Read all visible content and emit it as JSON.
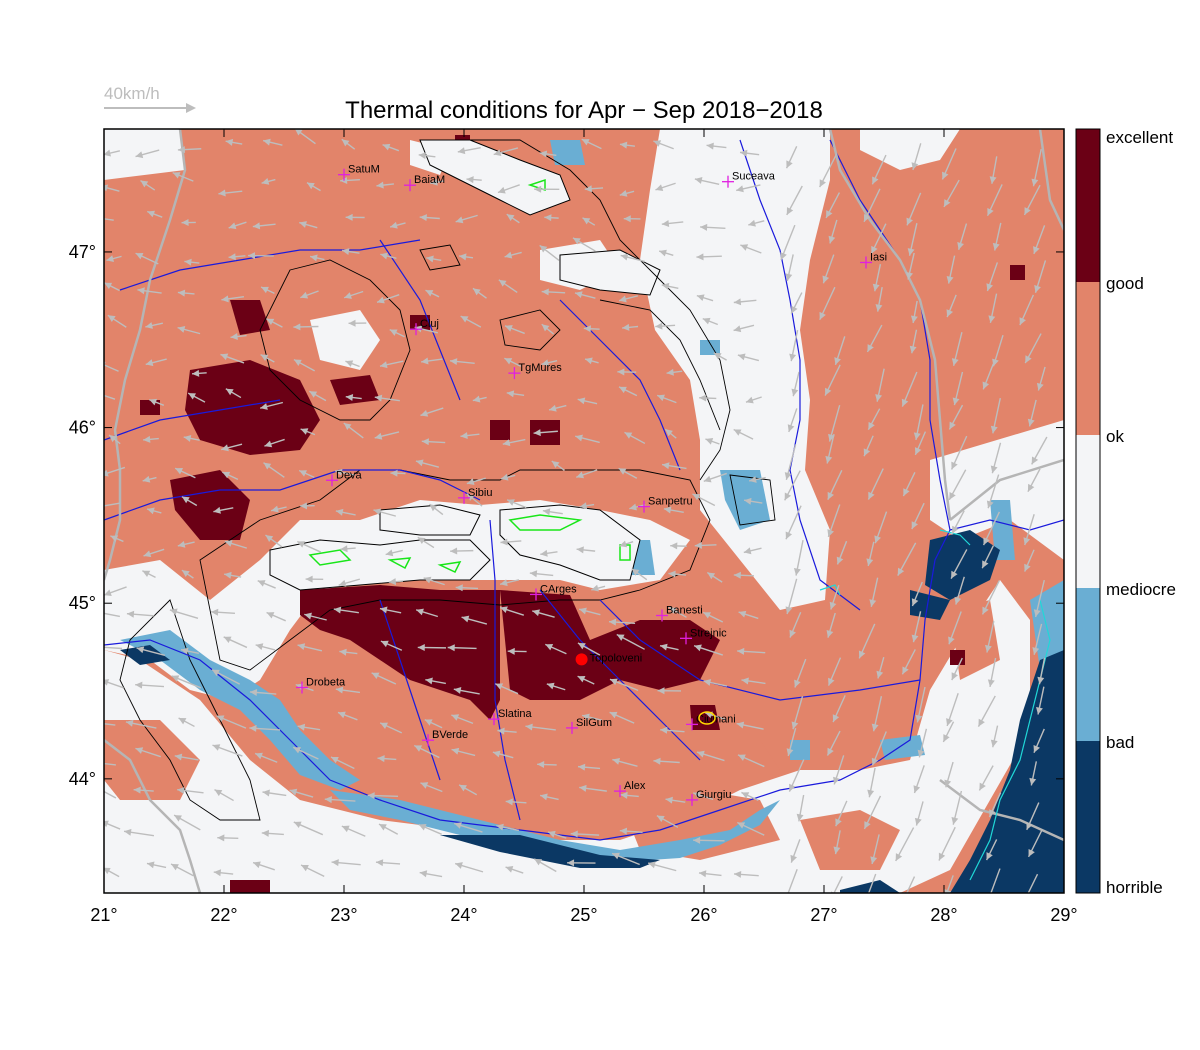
{
  "title": "Thermal conditions for Apr − Sep  2018−2018",
  "wind_scale": {
    "label": "40km/h",
    "color": "#bdbdbd"
  },
  "colors": {
    "horrible": "#0b3864",
    "bad": "#6aaed3",
    "mediocre": "#f4f5f7",
    "ok": "#e2846a",
    "good": "#6b0015",
    "rivers": "#1a1adc",
    "borders": "#b5b5b5",
    "contours": "#000000",
    "city_marker": "#e020e0",
    "site_marker": "#ff0000"
  },
  "colorbar": {
    "levels": [
      {
        "name": "excellent",
        "color": "#6b0015"
      },
      {
        "name": "good",
        "color": "#e2846a"
      },
      {
        "name": "ok",
        "color": "#f4f5f7"
      },
      {
        "name": "mediocre",
        "color": "#6aaed3"
      },
      {
        "name": "bad",
        "color": "#0b3864"
      },
      {
        "name": "horrible",
        "color": "#0b3864"
      }
    ]
  },
  "axes": {
    "lon_range": [
      21,
      29
    ],
    "lat_range": [
      43.35,
      47.7
    ],
    "lon_ticks": [
      "21°",
      "22°",
      "23°",
      "24°",
      "25°",
      "26°",
      "27°",
      "28°",
      "29°"
    ],
    "lat_ticks": [
      "44°",
      "45°",
      "46°",
      "47°"
    ]
  },
  "cities": [
    {
      "name": "SatuM",
      "lon": 23.0,
      "lat": 47.44
    },
    {
      "name": "BaiaM",
      "lon": 23.55,
      "lat": 47.38
    },
    {
      "name": "Suceava",
      "lon": 26.2,
      "lat": 47.4
    },
    {
      "name": "Iasi",
      "lon": 27.35,
      "lat": 46.94
    },
    {
      "name": "Cluj",
      "lon": 23.6,
      "lat": 46.56
    },
    {
      "name": "TgMures",
      "lon": 24.42,
      "lat": 46.31
    },
    {
      "name": "Deva",
      "lon": 22.9,
      "lat": 45.7
    },
    {
      "name": "Sibiu",
      "lon": 24.0,
      "lat": 45.6
    },
    {
      "name": "Sanpetru",
      "lon": 25.5,
      "lat": 45.55
    },
    {
      "name": "CArges",
      "lon": 24.6,
      "lat": 45.05
    },
    {
      "name": "Banesti",
      "lon": 25.65,
      "lat": 44.93
    },
    {
      "name": "Strejnic",
      "lon": 25.85,
      "lat": 44.8
    },
    {
      "name": "Drobeta",
      "lon": 22.65,
      "lat": 44.52
    },
    {
      "name": "Slatina",
      "lon": 24.25,
      "lat": 44.34
    },
    {
      "name": "SilGum",
      "lon": 24.9,
      "lat": 44.29
    },
    {
      "name": "BVerde",
      "lon": 23.7,
      "lat": 44.22
    },
    {
      "name": "Ciulnani",
      "lon": 25.9,
      "lat": 44.31
    },
    {
      "name": "Alex",
      "lon": 25.3,
      "lat": 43.93
    },
    {
      "name": "Giurgiu",
      "lon": 25.9,
      "lat": 43.88
    }
  ],
  "site": {
    "name": "Topoloveni",
    "lon": 24.98,
    "lat": 44.68
  }
}
